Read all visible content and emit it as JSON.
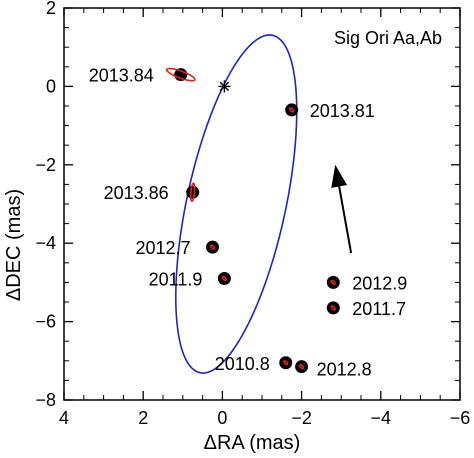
{
  "chart_data": {
    "type": "scatter",
    "title": "Sig Ori Aa,Ab",
    "xlabel": "ΔRA (mas)",
    "ylabel": "ΔDEC (mas)",
    "xlim": [
      4,
      -6
    ],
    "ylim": [
      -8,
      2
    ],
    "x_ticks": [
      4,
      2,
      0,
      -2,
      -4,
      -6
    ],
    "y_ticks": [
      2,
      0,
      -2,
      -4,
      -6,
      -8
    ],
    "x_tick_labels": [
      "4",
      "2",
      "0",
      "−2",
      "−4",
      "−6"
    ],
    "y_tick_labels": [
      "2",
      "0",
      "−2",
      "−4",
      "−6",
      "−8"
    ],
    "grid": false,
    "orbit": {
      "color": "#1f23c8",
      "center": [
        -0.35,
        -3.0
      ],
      "semi_major": 4.4,
      "semi_minor": 1.25,
      "angle_deg": -78
    },
    "primary_star": {
      "x": -0.05,
      "y": 0.0,
      "symbol": "asterisk"
    },
    "points": [
      {
        "label": "2013.84",
        "x": 1.05,
        "y": 0.3
      },
      {
        "label": "2013.81",
        "x": -1.75,
        "y": -0.6
      },
      {
        "label": "2013.86",
        "x": 0.75,
        "y": -2.7
      },
      {
        "label": "2012.7",
        "x": 0.25,
        "y": -4.1
      },
      {
        "label": "2011.9",
        "x": -0.05,
        "y": -4.9
      },
      {
        "label": "2012.9",
        "x": -2.8,
        "y": -5.0
      },
      {
        "label": "2011.7",
        "x": -2.8,
        "y": -5.65
      },
      {
        "label": "2010.8",
        "x": -1.6,
        "y": -7.05
      },
      {
        "label": "2012.8",
        "x": -2.0,
        "y": -7.15
      }
    ],
    "motion_arrow": {
      "from": [
        -3.25,
        -4.25
      ],
      "to": [
        -2.85,
        -2.0
      ]
    },
    "marker_color": "#000000",
    "error_color": "#e0201a"
  }
}
